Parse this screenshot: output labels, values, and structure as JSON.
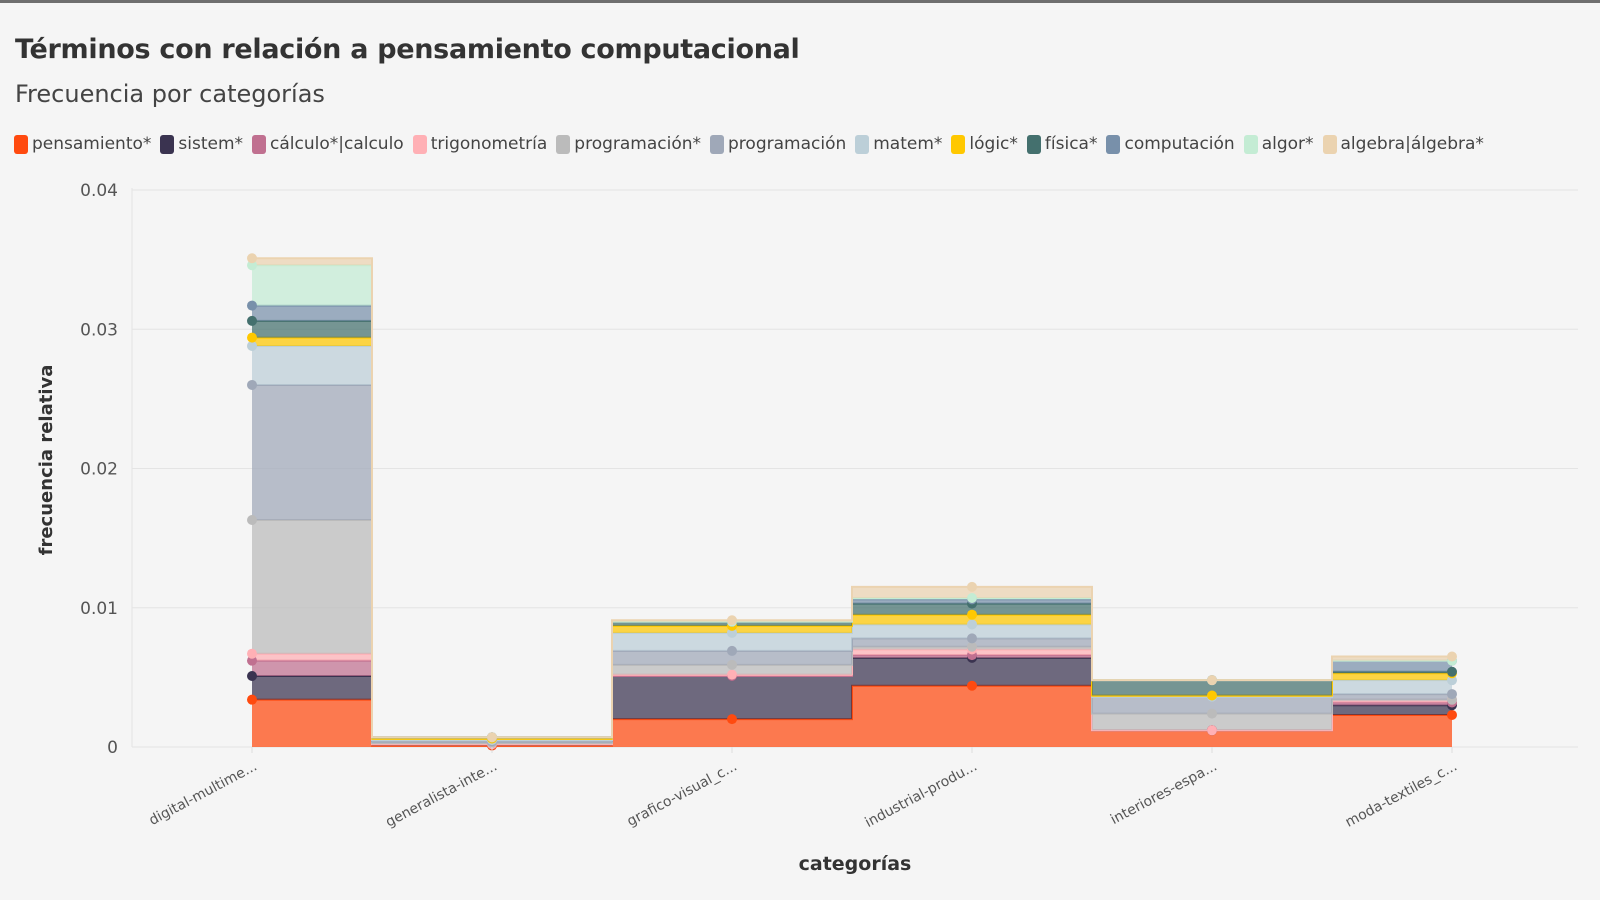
{
  "page": {
    "title": "Términos con relación a pensamiento computacional",
    "subtitle": "Frecuencia por categorías"
  },
  "chart_data": {
    "type": "area",
    "stacked": true,
    "step": true,
    "title": "Términos con relación a pensamiento computacional",
    "subtitle": "Frecuencia por categorías",
    "xlabel": "categorías",
    "ylabel": "frecuencia relativa",
    "ylim": [
      0,
      0.04
    ],
    "yticks": [
      0,
      0.01,
      0.02,
      0.03,
      0.04
    ],
    "ytick_labels": [
      "0",
      "0.01",
      "0.02",
      "0.03",
      "0.04"
    ],
    "grid": true,
    "legend_position": "top",
    "categories": [
      "digital-multime...",
      "generalista-inte...",
      "grafico-visual_c...",
      "industrial-produ...",
      "interiores-espa...",
      "moda-textiles_c..."
    ],
    "series": [
      {
        "name": "pensamiento*",
        "color": "#ff4a0f",
        "values": [
          0.0034,
          0.0001,
          0.002,
          0.0044,
          0.0012,
          0.0023
        ]
      },
      {
        "name": "sistem*",
        "color": "#3a3350",
        "values": [
          0.0017,
          0.0001,
          0.0031,
          0.002,
          0.0,
          0.0007
        ]
      },
      {
        "name": "cálculo*|calculo",
        "color": "#c07090",
        "values": [
          0.0011,
          0.0,
          0.0,
          0.0002,
          0.0,
          0.0002
        ]
      },
      {
        "name": "trigonometría",
        "color": "#ffb0b5",
        "values": [
          0.0005,
          0.0,
          0.0001,
          0.0004,
          0.0,
          0.0002
        ]
      },
      {
        "name": "programación*",
        "color": "#bbbbbb",
        "values": [
          0.0096,
          0.0001,
          0.0007,
          0.0002,
          0.0012,
          0.0
        ]
      },
      {
        "name": "programación",
        "color": "#9fa8b8",
        "values": [
          0.0097,
          0.0001,
          0.001,
          0.0006,
          0.0012,
          0.0004
        ]
      },
      {
        "name": "matem*",
        "color": "#bccfd8",
        "values": [
          0.0028,
          0.0001,
          0.0013,
          0.001,
          0.0,
          0.001
        ]
      },
      {
        "name": "lógic*",
        "color": "#ffc800",
        "values": [
          0.0006,
          0.0001,
          0.0005,
          0.0007,
          0.0001,
          0.0005
        ]
      },
      {
        "name": "física*",
        "color": "#44706e",
        "values": [
          0.0012,
          0.0001,
          0.0003,
          0.0008,
          0.0011,
          0.0001
        ]
      },
      {
        "name": "computación",
        "color": "#7890aa",
        "values": [
          0.0011,
          0.0,
          0.0,
          0.0003,
          0.0,
          0.0008
        ]
      },
      {
        "name": "algor*",
        "color": "#c4ecd4",
        "values": [
          0.0029,
          0.0,
          0.0,
          0.0001,
          0.0,
          0.0
        ]
      },
      {
        "name": "algebra|álgebra*",
        "color": "#ebd3b0",
        "values": [
          0.0005,
          0.0,
          0.0001,
          0.0008,
          0.0,
          0.0003
        ]
      }
    ]
  }
}
